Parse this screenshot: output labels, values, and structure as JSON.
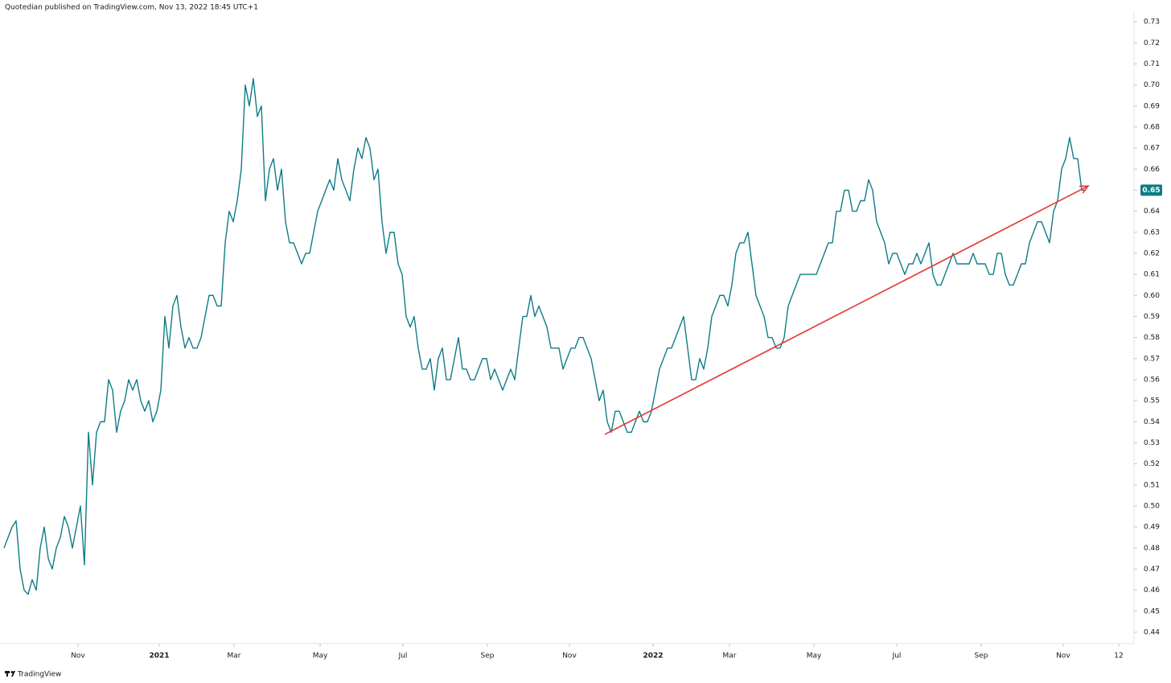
{
  "header": "Quotedian published on TradingView.com, Nov 13, 2022 18:45 UTC+1",
  "footer": "TradingView",
  "chart_data": {
    "type": "line",
    "color": "#0e7c86",
    "last_price_label": "0.65",
    "values": [
      0.48,
      0.485,
      0.49,
      0.493,
      0.47,
      0.46,
      0.458,
      0.465,
      0.46,
      0.48,
      0.49,
      0.475,
      0.47,
      0.48,
      0.485,
      0.495,
      0.49,
      0.48,
      0.49,
      0.5,
      0.472,
      0.535,
      0.51,
      0.535,
      0.54,
      0.54,
      0.56,
      0.555,
      0.535,
      0.545,
      0.55,
      0.56,
      0.555,
      0.56,
      0.55,
      0.545,
      0.55,
      0.54,
      0.545,
      0.555,
      0.59,
      0.575,
      0.595,
      0.6,
      0.585,
      0.575,
      0.58,
      0.575,
      0.575,
      0.58,
      0.59,
      0.6,
      0.6,
      0.595,
      0.595,
      0.625,
      0.64,
      0.635,
      0.645,
      0.66,
      0.7,
      0.69,
      0.703,
      0.685,
      0.69,
      0.645,
      0.66,
      0.665,
      0.65,
      0.66,
      0.635,
      0.625,
      0.625,
      0.62,
      0.615,
      0.62,
      0.62,
      0.63,
      0.64,
      0.645,
      0.65,
      0.655,
      0.65,
      0.665,
      0.655,
      0.65,
      0.645,
      0.66,
      0.67,
      0.665,
      0.675,
      0.67,
      0.655,
      0.66,
      0.635,
      0.62,
      0.63,
      0.63,
      0.615,
      0.61,
      0.59,
      0.585,
      0.59,
      0.575,
      0.565,
      0.565,
      0.57,
      0.555,
      0.57,
      0.575,
      0.56,
      0.56,
      0.57,
      0.58,
      0.565,
      0.565,
      0.56,
      0.56,
      0.565,
      0.57,
      0.57,
      0.56,
      0.565,
      0.56,
      0.555,
      0.56,
      0.565,
      0.56,
      0.575,
      0.59,
      0.59,
      0.6,
      0.59,
      0.595,
      0.59,
      0.585,
      0.575,
      0.575,
      0.575,
      0.565,
      0.57,
      0.575,
      0.575,
      0.58,
      0.58,
      0.575,
      0.57,
      0.56,
      0.55,
      0.555,
      0.54,
      0.535,
      0.545,
      0.545,
      0.54,
      0.535,
      0.535,
      0.54,
      0.545,
      0.54,
      0.54,
      0.545,
      0.555,
      0.565,
      0.57,
      0.575,
      0.575,
      0.58,
      0.585,
      0.59,
      0.575,
      0.56,
      0.56,
      0.57,
      0.565,
      0.575,
      0.59,
      0.595,
      0.6,
      0.6,
      0.595,
      0.605,
      0.62,
      0.625,
      0.625,
      0.63,
      0.615,
      0.6,
      0.595,
      0.59,
      0.58,
      0.58,
      0.575,
      0.575,
      0.58,
      0.595,
      0.6,
      0.605,
      0.61,
      0.61,
      0.61,
      0.61,
      0.61,
      0.615,
      0.62,
      0.625,
      0.625,
      0.64,
      0.64,
      0.65,
      0.65,
      0.64,
      0.64,
      0.645,
      0.645,
      0.655,
      0.65,
      0.635,
      0.63,
      0.625,
      0.615,
      0.62,
      0.62,
      0.615,
      0.61,
      0.615,
      0.615,
      0.62,
      0.615,
      0.62,
      0.625,
      0.61,
      0.605,
      0.605,
      0.61,
      0.615,
      0.62,
      0.615,
      0.615,
      0.615,
      0.615,
      0.62,
      0.615,
      0.615,
      0.615,
      0.61,
      0.61,
      0.62,
      0.62,
      0.61,
      0.605,
      0.605,
      0.61,
      0.615,
      0.615,
      0.625,
      0.63,
      0.635,
      0.635,
      0.63,
      0.625,
      0.64,
      0.645,
      0.66,
      0.665,
      0.675,
      0.665,
      0.665,
      0.65,
      0.65
    ],
    "xlim": [
      -1,
      281
    ],
    "xticks": [
      {
        "value": 18.4,
        "label": "Nov"
      },
      {
        "value": 38.6,
        "label": "2021"
      },
      {
        "value": 57.2,
        "label": "Mar"
      },
      {
        "value": 78.6,
        "label": "May"
      },
      {
        "value": 99.2,
        "label": "Jul"
      },
      {
        "value": 120.2,
        "label": "Sep"
      },
      {
        "value": 140.6,
        "label": "Nov"
      },
      {
        "value": 161.4,
        "label": "2022"
      },
      {
        "value": 180.4,
        "label": "Mar"
      },
      {
        "value": 201.4,
        "label": "May"
      },
      {
        "value": 222,
        "label": "Jul"
      },
      {
        "value": 243,
        "label": "Sep"
      },
      {
        "value": 263.4,
        "label": "Nov"
      },
      {
        "value": 277.2,
        "label": "12"
      }
    ],
    "ylim": [
      0.435,
      0.735
    ],
    "yticks": [
      0.44,
      0.45,
      0.46,
      0.47,
      0.48,
      0.49,
      {
        "value": 0.5,
        "label": "0.50"
      },
      0.51,
      0.52,
      0.53,
      0.54,
      0.55,
      0.56,
      0.57,
      0.58,
      0.59,
      {
        "value": 0.6,
        "label": "0.60"
      },
      0.61,
      0.62,
      0.63,
      0.64,
      0.65,
      0.66,
      0.67,
      0.68,
      0.69,
      {
        "value": 0.7,
        "label": "0.70"
      },
      0.71,
      0.72,
      0.73
    ],
    "trendline": {
      "x": [
        149.4,
        269.6
      ],
      "y": [
        0.534,
        0.652
      ],
      "color": "#e53935"
    }
  }
}
